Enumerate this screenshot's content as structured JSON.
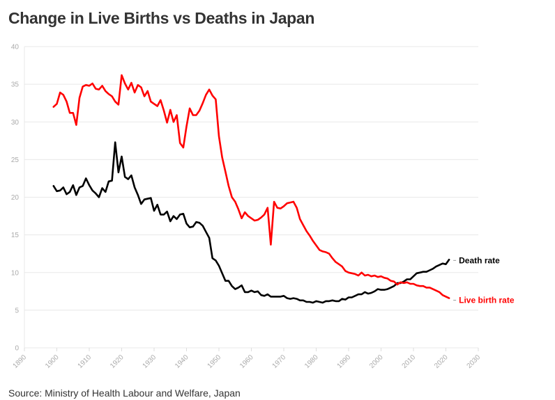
{
  "chart_data": {
    "type": "line",
    "title": "Change in Live Births vs Deaths in Japan",
    "source": "Source: Ministry of Health Labour and Welfare, Japan",
    "xlim": [
      1890,
      2030
    ],
    "ylim": [
      0,
      40
    ],
    "xticks": [
      "1890",
      "1900",
      "1910",
      "1920",
      "1930",
      "1940",
      "1950",
      "1960",
      "1970",
      "1980",
      "1990",
      "2000",
      "2010",
      "2020",
      "2030"
    ],
    "yticks": [
      "0",
      "5",
      "10",
      "15",
      "20",
      "25",
      "30",
      "35",
      "40"
    ],
    "grid": true,
    "legend": "end-of-line labels",
    "x": [
      1899,
      1900,
      1901,
      1902,
      1903,
      1904,
      1905,
      1906,
      1907,
      1908,
      1909,
      1910,
      1911,
      1912,
      1913,
      1914,
      1915,
      1916,
      1917,
      1918,
      1919,
      1920,
      1921,
      1922,
      1923,
      1924,
      1925,
      1926,
      1927,
      1928,
      1929,
      1930,
      1931,
      1932,
      1933,
      1934,
      1935,
      1936,
      1937,
      1938,
      1939,
      1940,
      1941,
      1942,
      1943,
      1944,
      1945,
      1946,
      1947,
      1948,
      1949,
      1950,
      1951,
      1952,
      1953,
      1954,
      1955,
      1956,
      1957,
      1958,
      1959,
      1960,
      1961,
      1962,
      1963,
      1964,
      1965,
      1966,
      1967,
      1968,
      1969,
      1970,
      1971,
      1972,
      1973,
      1974,
      1975,
      1976,
      1977,
      1978,
      1979,
      1980,
      1981,
      1982,
      1983,
      1984,
      1985,
      1986,
      1987,
      1988,
      1989,
      1990,
      1991,
      1992,
      1993,
      1994,
      1995,
      1996,
      1997,
      1998,
      1999,
      2000,
      2001,
      2002,
      2003,
      2004,
      2005,
      2006,
      2007,
      2008,
      2009,
      2010,
      2011,
      2012,
      2013,
      2014,
      2015,
      2016,
      2017,
      2018,
      2019,
      2020,
      2021
    ],
    "series": [
      {
        "name": "Death rate",
        "color": "#000000",
        "values": [
          21.5,
          20.8,
          20.9,
          21.3,
          20.4,
          20.7,
          21.6,
          20.3,
          21.3,
          21.5,
          22.5,
          21.6,
          20.9,
          20.5,
          20.0,
          21.2,
          20.7,
          22.1,
          22.2,
          27.3,
          23.3,
          25.4,
          22.7,
          22.4,
          22.9,
          21.3,
          20.3,
          19.1,
          19.7,
          19.8,
          19.9,
          18.2,
          19.0,
          17.7,
          17.7,
          18.1,
          16.8,
          17.5,
          17.1,
          17.7,
          17.8,
          16.5,
          16.0,
          16.1,
          16.7,
          16.6,
          16.2,
          15.4,
          14.6,
          11.9,
          11.6,
          10.9,
          9.9,
          8.9,
          8.9,
          8.2,
          7.8,
          8.0,
          8.3,
          7.4,
          7.4,
          7.6,
          7.4,
          7.5,
          7.0,
          6.9,
          7.1,
          6.8,
          6.8,
          6.8,
          6.8,
          6.9,
          6.6,
          6.5,
          6.6,
          6.5,
          6.3,
          6.3,
          6.1,
          6.1,
          6.0,
          6.2,
          6.1,
          6.0,
          6.2,
          6.2,
          6.3,
          6.2,
          6.2,
          6.5,
          6.4,
          6.7,
          6.7,
          6.9,
          7.1,
          7.1,
          7.4,
          7.2,
          7.3,
          7.5,
          7.8,
          7.7,
          7.7,
          7.8,
          8.0,
          8.2,
          8.6,
          8.6,
          8.8,
          9.1,
          9.1,
          9.5,
          9.9,
          10.0,
          10.1,
          10.1,
          10.3,
          10.5,
          10.8,
          11.0,
          11.2,
          11.1,
          11.7
        ]
      },
      {
        "name": "Live birth rate",
        "color": "#ff0000",
        "values": [
          32.0,
          32.4,
          33.9,
          33.6,
          32.7,
          31.2,
          31.2,
          29.6,
          33.2,
          34.7,
          34.9,
          34.8,
          35.1,
          34.4,
          34.3,
          34.8,
          34.1,
          33.7,
          33.4,
          32.7,
          32.3,
          36.2,
          35.1,
          34.3,
          35.2,
          33.9,
          34.9,
          34.6,
          33.4,
          34.1,
          32.7,
          32.4,
          32.1,
          32.9,
          31.5,
          29.9,
          31.6,
          30.0,
          30.9,
          27.2,
          26.6,
          29.4,
          31.8,
          30.9,
          30.9,
          31.5,
          32.5,
          33.6,
          34.3,
          33.5,
          33.0,
          28.1,
          25.3,
          23.4,
          21.5,
          20.0,
          19.4,
          18.4,
          17.2,
          18.0,
          17.5,
          17.2,
          16.9,
          17.0,
          17.3,
          17.7,
          18.6,
          13.7,
          19.4,
          18.6,
          18.5,
          18.8,
          19.2,
          19.3,
          19.4,
          18.6,
          17.1,
          16.3,
          15.5,
          14.9,
          14.2,
          13.6,
          13.0,
          12.8,
          12.7,
          12.5,
          11.9,
          11.4,
          11.1,
          10.8,
          10.2,
          10.0,
          9.9,
          9.8,
          9.6,
          10.0,
          9.6,
          9.7,
          9.5,
          9.6,
          9.4,
          9.5,
          9.3,
          9.2,
          8.9,
          8.8,
          8.4,
          8.7,
          8.6,
          8.7,
          8.5,
          8.5,
          8.3,
          8.2,
          8.2,
          8.0,
          8.0,
          7.8,
          7.6,
          7.4,
          7.0,
          6.8,
          6.6
        ]
      }
    ]
  }
}
